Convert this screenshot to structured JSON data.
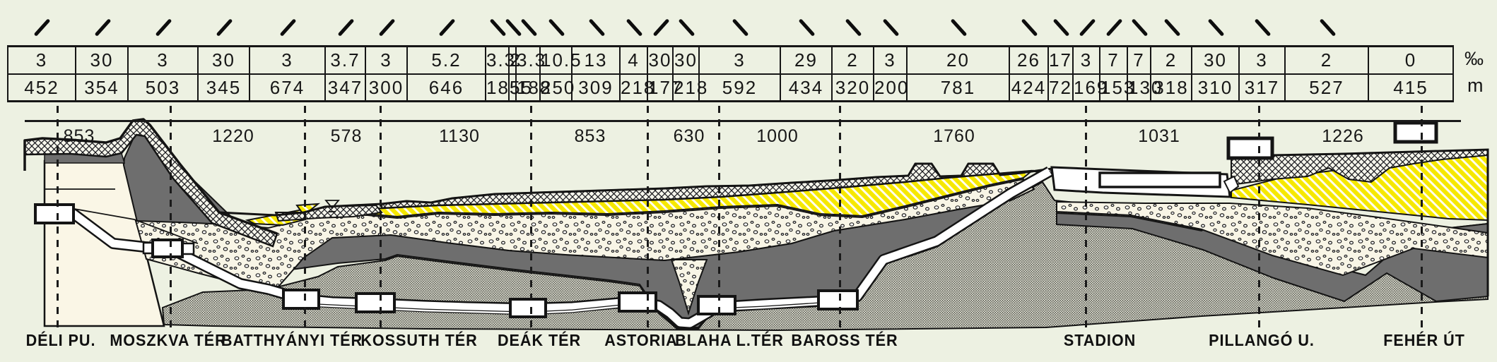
{
  "diagram": {
    "type": "metro line longitudinal geological profile",
    "units": {
      "grade": "‰",
      "length": "m"
    },
    "gradient_segments": [
      {
        "grade": "3",
        "length": "452",
        "dir": "down"
      },
      {
        "grade": "30",
        "length": "354",
        "dir": "down"
      },
      {
        "grade": "3",
        "length": "503",
        "dir": "down"
      },
      {
        "grade": "30",
        "length": "345",
        "dir": "down"
      },
      {
        "grade": "3",
        "length": "674",
        "dir": "down"
      },
      {
        "grade": "3.7",
        "length": "347",
        "dir": "down"
      },
      {
        "grade": "3",
        "length": "300",
        "dir": "down"
      },
      {
        "grade": "5.2",
        "length": "646",
        "dir": "down"
      },
      {
        "grade": "3.3",
        "length": "185",
        "dir": "up"
      },
      {
        "grade": "2",
        "length": "55",
        "dir": "up"
      },
      {
        "grade": "3.3",
        "length": "188",
        "dir": "up"
      },
      {
        "grade": "10.5",
        "length": "250",
        "dir": "up"
      },
      {
        "grade": "13",
        "length": "309",
        "dir": "up"
      },
      {
        "grade": "4",
        "length": "218",
        "dir": "up"
      },
      {
        "grade": "30",
        "length": "177",
        "dir": "down"
      },
      {
        "grade": "30",
        "length": "218",
        "dir": "up"
      },
      {
        "grade": "3",
        "length": "592",
        "dir": "up"
      },
      {
        "grade": "29",
        "length": "434",
        "dir": "up"
      },
      {
        "grade": "2",
        "length": "320",
        "dir": "up"
      },
      {
        "grade": "3",
        "length": "200",
        "dir": "up"
      },
      {
        "grade": "20",
        "length": "781",
        "dir": "up"
      },
      {
        "grade": "26",
        "length": "424",
        "dir": "up"
      },
      {
        "grade": "17",
        "length": "72",
        "dir": "up"
      },
      {
        "grade": "3",
        "length": "169",
        "dir": "down"
      },
      {
        "grade": "7",
        "length": "153",
        "dir": "down"
      },
      {
        "grade": "7",
        "length": "130",
        "dir": "up"
      },
      {
        "grade": "2",
        "length": "318",
        "dir": "up"
      },
      {
        "grade": "30",
        "length": "310",
        "dir": "up"
      },
      {
        "grade": "3",
        "length": "317",
        "dir": "up"
      },
      {
        "grade": "2",
        "length": "527",
        "dir": "up"
      },
      {
        "grade": "0",
        "length": "415",
        "dir": "level"
      }
    ],
    "station_spacing_m": [
      "853",
      "1220",
      "578",
      "1130",
      "853",
      "630",
      "1000",
      "1760",
      "1031",
      "1226"
    ],
    "stations": [
      {
        "name": "DÉLI PU."
      },
      {
        "name": "MOSZKVA TÉR"
      },
      {
        "name": "BATTHYÁNYI TÉR"
      },
      {
        "name": "KOSSUTH TÉR"
      },
      {
        "name": "DEÁK TÉR"
      },
      {
        "name": "ASTORIA"
      },
      {
        "name": "BLAHA L.TÉR"
      },
      {
        "name": "BAROSS TÉR"
      },
      {
        "name": "STADION"
      },
      {
        "name": "PILLANGÓ U."
      },
      {
        "name": "FEHÉR ÚT"
      }
    ],
    "colors": {
      "background": "#edf1e2",
      "ink": "#141414",
      "dark_gray_layer": "#6e6e6e",
      "halftone_base": "#e0e1d4",
      "halftone_dot": "#45453e",
      "stipple_base": "#f8f5e6",
      "yellow_layer": "#f6e800",
      "yellow_stripe": "#fffdf0",
      "crosshatch_base": "#f6f6ec",
      "cream_block": "#faf6e6",
      "tunnel_white": "#ffffff"
    }
  }
}
